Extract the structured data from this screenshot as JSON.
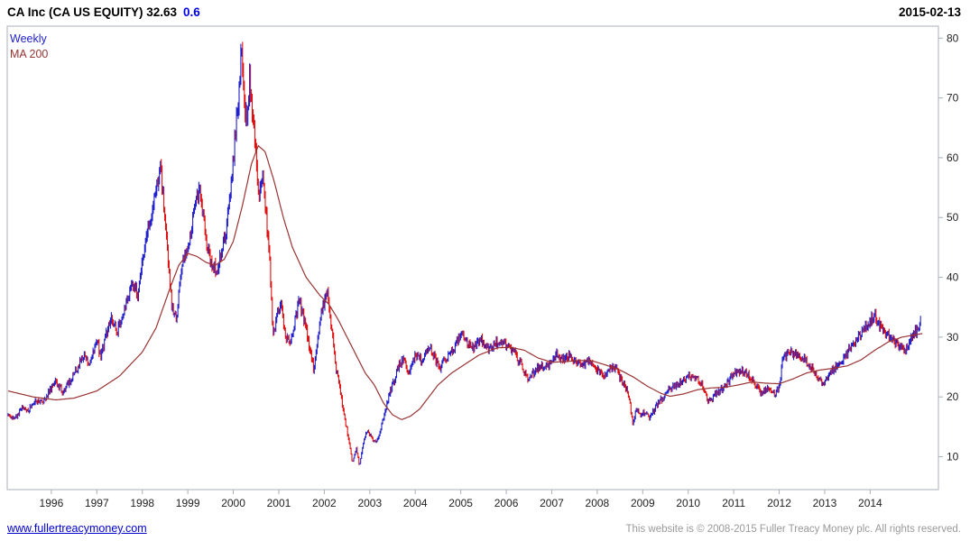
{
  "header": {
    "title": "CA Inc (CA US EQUITY) 32.63",
    "change": "0.6",
    "date": "2015-02-13"
  },
  "legend": {
    "weekly": "Weekly",
    "ma": "MA 200"
  },
  "footer": {
    "link": "www.fullertreacymoney.com",
    "copyright": "This website is © 2008-2015 Fuller Treacy Money plc. All rights reserved."
  },
  "colors": {
    "change_blue": "#0000ee",
    "link_blue": "#0000cc",
    "muted_gray": "#999999",
    "axis_text": "#222222"
  },
  "chart_data": {
    "type": "line",
    "style": "weekly-range-bars-with-moving-average",
    "title": "CA Inc (CA US EQUITY)",
    "last_price": 32.63,
    "change": 0.6,
    "date": "2015-02-13",
    "grid": false,
    "legend_position": "top-left",
    "xlim": [
      1995.03,
      2015.5
    ],
    "ylim": [
      4.5,
      82
    ],
    "x_ticks": [
      1996,
      1997,
      1998,
      1999,
      2000,
      2001,
      2002,
      2003,
      2004,
      2005,
      2006,
      2007,
      2008,
      2009,
      2010,
      2011,
      2012,
      2013,
      2014
    ],
    "y_ticks": [
      10,
      20,
      30,
      40,
      50,
      60,
      70,
      80
    ],
    "colors": {
      "up": "#2020cc",
      "down": "#e01010",
      "ma": "#993333",
      "frame": "#a9afb8"
    },
    "series": [
      {
        "name": "Weekly",
        "role": "price",
        "keyframes": [
          [
            1995.05,
            17.2
          ],
          [
            1995.2,
            16.3
          ],
          [
            1995.35,
            18.2
          ],
          [
            1995.5,
            17.8
          ],
          [
            1995.65,
            19.5
          ],
          [
            1995.8,
            19.0
          ],
          [
            1995.95,
            21.0
          ],
          [
            1996.1,
            22.5
          ],
          [
            1996.25,
            21.0
          ],
          [
            1996.4,
            22.5
          ],
          [
            1996.55,
            24.5
          ],
          [
            1996.7,
            27.0
          ],
          [
            1996.85,
            25.5
          ],
          [
            1997.0,
            30.0
          ],
          [
            1997.08,
            26.5
          ],
          [
            1997.2,
            30.5
          ],
          [
            1997.32,
            33.0
          ],
          [
            1997.45,
            31.0
          ],
          [
            1997.55,
            33.5
          ],
          [
            1997.68,
            36.5
          ],
          [
            1997.8,
            39.0
          ],
          [
            1997.9,
            37.0
          ],
          [
            1998.0,
            42.0
          ],
          [
            1998.1,
            47.0
          ],
          [
            1998.2,
            50.0
          ],
          [
            1998.3,
            55.0
          ],
          [
            1998.4,
            58.0
          ],
          [
            1998.48,
            52.0
          ],
          [
            1998.55,
            44.0
          ],
          [
            1998.65,
            35.0
          ],
          [
            1998.75,
            33.0
          ],
          [
            1998.85,
            41.0
          ],
          [
            1998.95,
            44.0
          ],
          [
            1999.05,
            47.0
          ],
          [
            1999.15,
            52.0
          ],
          [
            1999.25,
            55.0
          ],
          [
            1999.35,
            49.0
          ],
          [
            1999.45,
            44.0
          ],
          [
            1999.55,
            42.0
          ],
          [
            1999.65,
            41.0
          ],
          [
            1999.75,
            44.5
          ],
          [
            1999.85,
            48.0
          ],
          [
            1999.95,
            55.0
          ],
          [
            2000.05,
            65.0
          ],
          [
            2000.12,
            71.0
          ],
          [
            2000.18,
            78.5
          ],
          [
            2000.24,
            69.0
          ],
          [
            2000.3,
            66.0
          ],
          [
            2000.36,
            73.0
          ],
          [
            2000.44,
            66.0
          ],
          [
            2000.5,
            60.0
          ],
          [
            2000.56,
            52.0
          ],
          [
            2000.64,
            57.0
          ],
          [
            2000.72,
            50.0
          ],
          [
            2000.8,
            43.0
          ],
          [
            2000.87,
            30.0
          ],
          [
            2000.95,
            33.5
          ],
          [
            2001.05,
            35.5
          ],
          [
            2001.15,
            30.0
          ],
          [
            2001.25,
            29.0
          ],
          [
            2001.35,
            33.0
          ],
          [
            2001.45,
            36.0
          ],
          [
            2001.55,
            33.0
          ],
          [
            2001.63,
            30.0
          ],
          [
            2001.7,
            27.5
          ],
          [
            2001.77,
            24.5
          ],
          [
            2001.85,
            29.0
          ],
          [
            2001.93,
            33.5
          ],
          [
            2002.0,
            36.0
          ],
          [
            2002.07,
            38.0
          ],
          [
            2002.15,
            32.0
          ],
          [
            2002.25,
            25.0
          ],
          [
            2002.35,
            21.0
          ],
          [
            2002.45,
            16.5
          ],
          [
            2002.55,
            12.0
          ],
          [
            2002.62,
            9.0
          ],
          [
            2002.7,
            11.5
          ],
          [
            2002.77,
            8.5
          ],
          [
            2002.85,
            12.0
          ],
          [
            2002.95,
            14.5
          ],
          [
            2003.05,
            13.0
          ],
          [
            2003.15,
            12.5
          ],
          [
            2003.25,
            15.0
          ],
          [
            2003.35,
            18.0
          ],
          [
            2003.45,
            21.0
          ],
          [
            2003.55,
            23.0
          ],
          [
            2003.65,
            25.5
          ],
          [
            2003.75,
            26.0
          ],
          [
            2003.85,
            24.0
          ],
          [
            2003.95,
            26.5
          ],
          [
            2004.05,
            27.0
          ],
          [
            2004.15,
            26.0
          ],
          [
            2004.25,
            27.5
          ],
          [
            2004.35,
            28.0
          ],
          [
            2004.45,
            26.0
          ],
          [
            2004.55,
            25.0
          ],
          [
            2004.65,
            26.5
          ],
          [
            2004.75,
            27.0
          ],
          [
            2004.85,
            28.0
          ],
          [
            2004.95,
            30.0
          ],
          [
            2005.03,
            31.0
          ],
          [
            2005.15,
            28.5
          ],
          [
            2005.3,
            28.5
          ],
          [
            2005.45,
            29.5
          ],
          [
            2005.6,
            28.0
          ],
          [
            2005.75,
            29.0
          ],
          [
            2005.9,
            29.0
          ],
          [
            2006.05,
            28.5
          ],
          [
            2006.2,
            27.0
          ],
          [
            2006.35,
            25.0
          ],
          [
            2006.45,
            23.0
          ],
          [
            2006.55,
            23.5
          ],
          [
            2006.7,
            25.0
          ],
          [
            2006.85,
            25.0
          ],
          [
            2007.0,
            26.0
          ],
          [
            2007.1,
            27.5
          ],
          [
            2007.2,
            26.0
          ],
          [
            2007.35,
            27.0
          ],
          [
            2007.5,
            26.0
          ],
          [
            2007.65,
            25.5
          ],
          [
            2007.8,
            26.0
          ],
          [
            2007.95,
            25.0
          ],
          [
            2008.1,
            23.5
          ],
          [
            2008.25,
            24.5
          ],
          [
            2008.4,
            25.0
          ],
          [
            2008.5,
            23.0
          ],
          [
            2008.6,
            22.0
          ],
          [
            2008.7,
            20.0
          ],
          [
            2008.78,
            15.5
          ],
          [
            2008.85,
            18.0
          ],
          [
            2008.95,
            17.0
          ],
          [
            2009.05,
            17.5
          ],
          [
            2009.15,
            16.5
          ],
          [
            2009.3,
            18.5
          ],
          [
            2009.45,
            20.0
          ],
          [
            2009.6,
            21.5
          ],
          [
            2009.75,
            22.0
          ],
          [
            2009.9,
            23.0
          ],
          [
            2010.05,
            23.5
          ],
          [
            2010.2,
            23.0
          ],
          [
            2010.35,
            21.5
          ],
          [
            2010.45,
            19.0
          ],
          [
            2010.55,
            20.0
          ],
          [
            2010.7,
            21.0
          ],
          [
            2010.85,
            22.0
          ],
          [
            2011.0,
            24.0
          ],
          [
            2011.15,
            24.5
          ],
          [
            2011.3,
            24.0
          ],
          [
            2011.45,
            22.5
          ],
          [
            2011.6,
            20.5
          ],
          [
            2011.75,
            21.5
          ],
          [
            2011.9,
            20.5
          ],
          [
            2012.0,
            21.5
          ],
          [
            2012.08,
            26.5
          ],
          [
            2012.2,
            27.5
          ],
          [
            2012.35,
            27.0
          ],
          [
            2012.5,
            26.5
          ],
          [
            2012.65,
            25.5
          ],
          [
            2012.8,
            24.0
          ],
          [
            2012.95,
            22.0
          ],
          [
            2013.1,
            24.0
          ],
          [
            2013.25,
            25.0
          ],
          [
            2013.4,
            26.5
          ],
          [
            2013.55,
            28.0
          ],
          [
            2013.7,
            29.5
          ],
          [
            2013.85,
            31.0
          ],
          [
            2014.0,
            32.5
          ],
          [
            2014.1,
            34.0
          ],
          [
            2014.2,
            32.0
          ],
          [
            2014.35,
            30.5
          ],
          [
            2014.5,
            29.5
          ],
          [
            2014.65,
            28.5
          ],
          [
            2014.78,
            27.5
          ],
          [
            2014.88,
            30.0
          ],
          [
            2015.0,
            31.0
          ],
          [
            2015.12,
            32.6
          ]
        ]
      },
      {
        "name": "MA 200",
        "role": "moving-average",
        "keyframes": [
          [
            1995.05,
            21.0
          ],
          [
            1995.6,
            20.0
          ],
          [
            1996.1,
            19.5
          ],
          [
            1996.5,
            19.8
          ],
          [
            1997.0,
            21.0
          ],
          [
            1997.5,
            23.5
          ],
          [
            1998.0,
            27.5
          ],
          [
            1998.3,
            31.5
          ],
          [
            1998.6,
            38.0
          ],
          [
            1998.8,
            42.0
          ],
          [
            1999.0,
            44.0
          ],
          [
            1999.2,
            43.5
          ],
          [
            1999.4,
            42.5
          ],
          [
            1999.6,
            42.0
          ],
          [
            1999.8,
            43.0
          ],
          [
            2000.0,
            46.0
          ],
          [
            2000.2,
            52.0
          ],
          [
            2000.4,
            59.0
          ],
          [
            2000.55,
            62.0
          ],
          [
            2000.7,
            61.0
          ],
          [
            2000.9,
            56.0
          ],
          [
            2001.1,
            50.0
          ],
          [
            2001.3,
            45.0
          ],
          [
            2001.6,
            40.0
          ],
          [
            2001.9,
            37.0
          ],
          [
            2002.1,
            35.5
          ],
          [
            2002.3,
            33.0
          ],
          [
            2002.5,
            30.0
          ],
          [
            2002.7,
            27.0
          ],
          [
            2002.9,
            24.0
          ],
          [
            2003.1,
            22.0
          ],
          [
            2003.3,
            19.0
          ],
          [
            2003.5,
            17.0
          ],
          [
            2003.7,
            16.2
          ],
          [
            2003.9,
            16.8
          ],
          [
            2004.1,
            18.0
          ],
          [
            2004.3,
            20.0
          ],
          [
            2004.5,
            22.0
          ],
          [
            2004.8,
            24.0
          ],
          [
            2005.1,
            25.5
          ],
          [
            2005.4,
            27.0
          ],
          [
            2005.8,
            28.2
          ],
          [
            2006.1,
            28.3
          ],
          [
            2006.4,
            27.8
          ],
          [
            2006.7,
            26.5
          ],
          [
            2007.0,
            25.8
          ],
          [
            2007.3,
            25.9
          ],
          [
            2007.6,
            26.1
          ],
          [
            2007.9,
            26.0
          ],
          [
            2008.2,
            25.3
          ],
          [
            2008.5,
            24.5
          ],
          [
            2008.8,
            23.3
          ],
          [
            2009.1,
            21.8
          ],
          [
            2009.4,
            20.6
          ],
          [
            2009.6,
            20.1
          ],
          [
            2009.9,
            20.5
          ],
          [
            2010.2,
            21.2
          ],
          [
            2010.5,
            21.5
          ],
          [
            2010.8,
            21.6
          ],
          [
            2011.1,
            22.0
          ],
          [
            2011.4,
            22.5
          ],
          [
            2011.7,
            22.3
          ],
          [
            2012.0,
            22.2
          ],
          [
            2012.3,
            23.0
          ],
          [
            2012.6,
            24.0
          ],
          [
            2012.9,
            24.5
          ],
          [
            2013.2,
            24.8
          ],
          [
            2013.5,
            25.2
          ],
          [
            2013.8,
            26.2
          ],
          [
            2014.1,
            27.8
          ],
          [
            2014.4,
            29.2
          ],
          [
            2014.7,
            30.0
          ],
          [
            2015.0,
            30.4
          ],
          [
            2015.15,
            30.6
          ]
        ]
      }
    ]
  }
}
